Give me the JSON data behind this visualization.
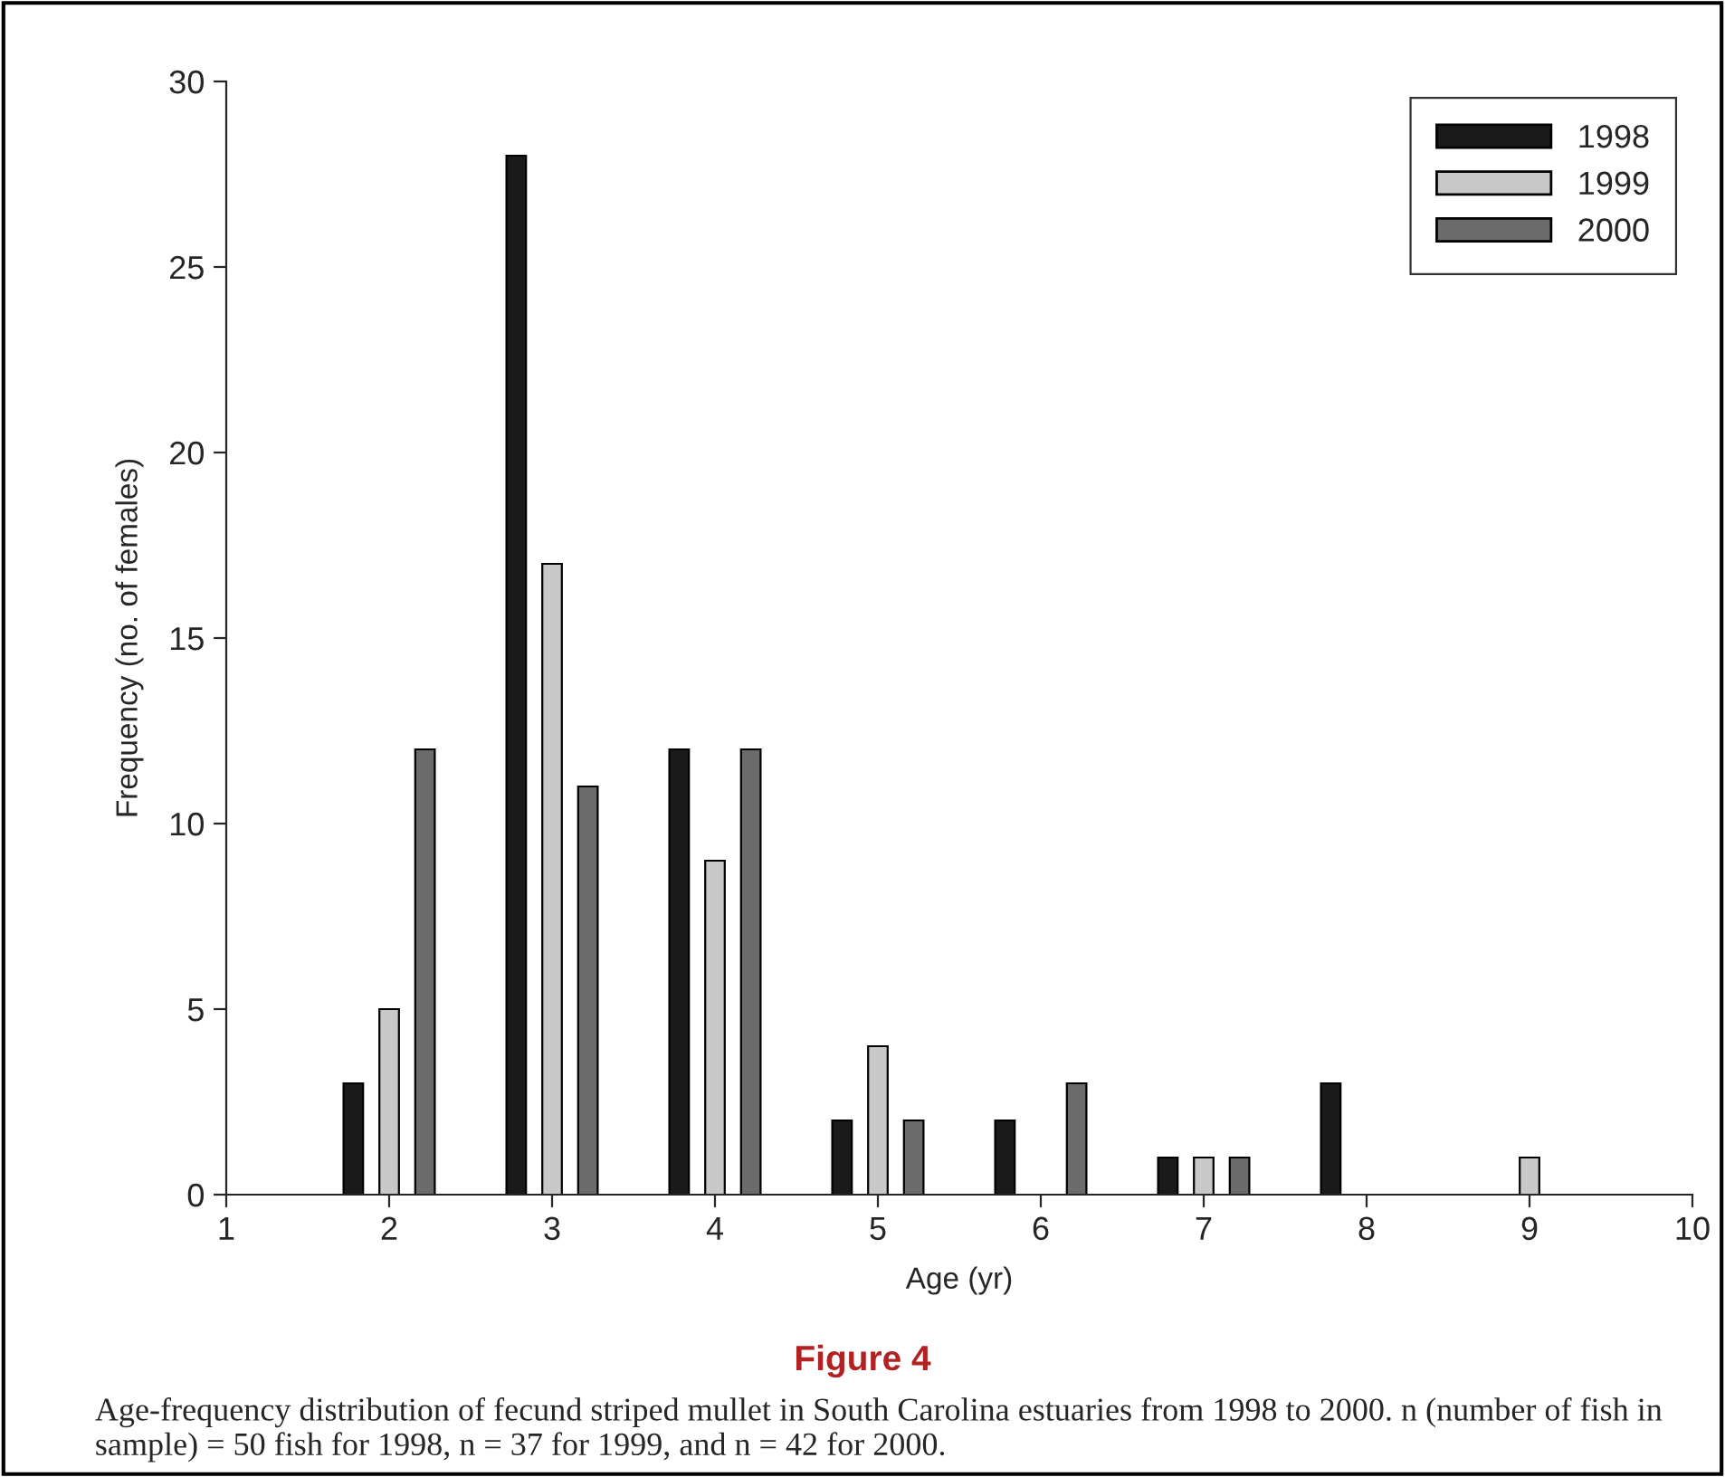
{
  "chart_data": {
    "type": "bar",
    "title": "Figure 4",
    "xlabel": "Age (yr)",
    "ylabel": "Frequency (no. of females)",
    "x": [
      2,
      3,
      4,
      5,
      6,
      7,
      8,
      9
    ],
    "series": [
      {
        "name": "1998",
        "color": "#1a1a1a",
        "values": [
          3,
          28,
          12,
          2,
          2,
          1,
          3,
          null
        ]
      },
      {
        "name": "1999",
        "color": "#c8c8c8",
        "values": [
          5,
          17,
          9,
          4,
          null,
          1,
          null,
          1
        ]
      },
      {
        "name": "2000",
        "color": "#6b6b6b",
        "values": [
          12,
          11,
          12,
          2,
          3,
          1,
          null,
          null
        ]
      }
    ],
    "xlim": [
      1,
      10
    ],
    "xticks": [
      1,
      2,
      3,
      4,
      5,
      6,
      7,
      8,
      9,
      10
    ],
    "ylim": [
      0,
      30
    ],
    "yticks": [
      0,
      5,
      10,
      15,
      20,
      25,
      30
    ],
    "legend": "top right",
    "grid": false,
    "annotations": [
      "Age-frequency distribution of fecund striped mullet in South Carolina estuaries from 1998 to 2000. n (number of fish in sample) = 50 fish for 1998, n = 37 for 1999, and n = 42 for 2000."
    ]
  }
}
